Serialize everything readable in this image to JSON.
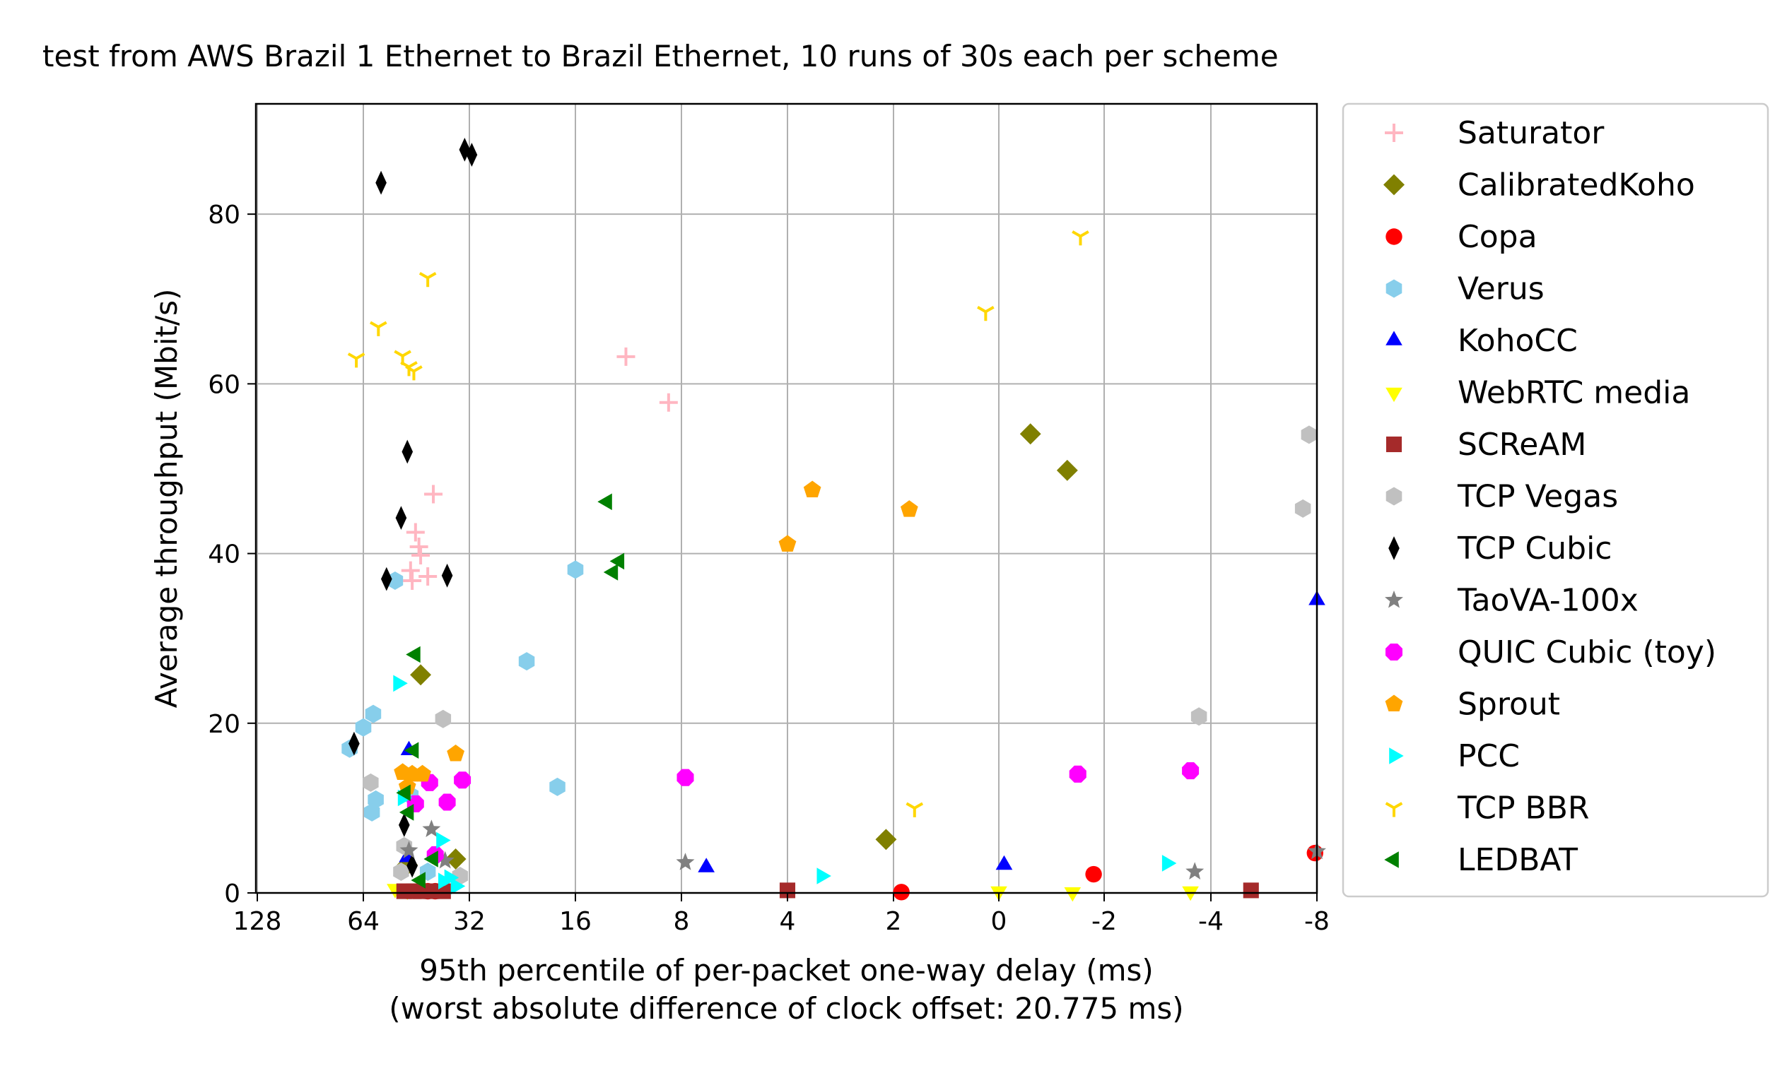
{
  "chart_data": {
    "type": "scatter",
    "title": "test from AWS Brazil 1 Ethernet to Brazil Ethernet, 10 runs of 30s each per scheme",
    "xlabel": "95th percentile of per-packet one-way delay (ms)",
    "xlabel_sub": "(worst absolute difference of clock offset: 20.775 ms)",
    "ylabel": "Average throughput (Mbit/s)",
    "x_scale": "symlog (inverted)",
    "x_ticks": [
      {
        "value": 128,
        "label": "128"
      },
      {
        "value": 64,
        "label": "64"
      },
      {
        "value": 32,
        "label": "32"
      },
      {
        "value": 16,
        "label": "16"
      },
      {
        "value": 8,
        "label": "8"
      },
      {
        "value": 4,
        "label": "4"
      },
      {
        "value": 2,
        "label": "2"
      },
      {
        "value": 0,
        "label": "0"
      },
      {
        "value": -2,
        "label": "-2"
      },
      {
        "value": -4,
        "label": "-4"
      },
      {
        "value": -8,
        "label": "-8"
      }
    ],
    "y_ticks": [
      {
        "value": 0,
        "label": "0"
      },
      {
        "value": 20,
        "label": "20"
      },
      {
        "value": 40,
        "label": "40"
      },
      {
        "value": 60,
        "label": "60"
      },
      {
        "value": 80,
        "label": "80"
      }
    ],
    "ylim": [
      0,
      93
    ],
    "grid": true,
    "legend_position": "right, outside plot",
    "series": [
      {
        "name": "Saturator",
        "marker": "plus",
        "color": "#ffb6c1",
        "points": [
          [
            11.5,
            63.2
          ],
          [
            8.7,
            57.8
          ],
          [
            40.5,
            47.0
          ],
          [
            45.5,
            42.5
          ],
          [
            44.0,
            39.8
          ],
          [
            47.0,
            38.0
          ],
          [
            42.0,
            37.3
          ],
          [
            44.5,
            40.8
          ],
          [
            46.5,
            36.8
          ]
        ]
      },
      {
        "name": "CalibratedKoho",
        "marker": "diamond",
        "color": "#808000",
        "points": [
          [
            -0.6,
            54.1
          ],
          [
            -1.3,
            49.8
          ],
          [
            2.1,
            6.3
          ],
          [
            44.0,
            25.7
          ],
          [
            35.0,
            4.0
          ],
          [
            48.0,
            3.3
          ]
        ]
      },
      {
        "name": "Copa",
        "marker": "circle",
        "color": "#ff0000",
        "points": [
          [
            -1.8,
            2.2
          ],
          [
            1.85,
            0.1
          ],
          [
            -7.9,
            4.7
          ],
          [
            44.0,
            0.3
          ],
          [
            42.0,
            0.2
          ],
          [
            40.0,
            0.2
          ]
        ]
      },
      {
        "name": "Verus",
        "marker": "hexagon",
        "color": "#87ceeb",
        "points": [
          [
            16.0,
            38.1
          ],
          [
            22.0,
            27.3
          ],
          [
            18.0,
            12.5
          ],
          [
            60.0,
            21.1
          ],
          [
            64.0,
            19.5
          ],
          [
            70.0,
            17.0
          ],
          [
            59.0,
            11.0
          ],
          [
            60.5,
            9.5
          ],
          [
            52.0,
            36.8
          ],
          [
            47.0,
            11.5
          ],
          [
            42.0,
            2.5
          ]
        ]
      },
      {
        "name": "KohoCC",
        "marker": "triangle-up",
        "color": "#0000ff",
        "points": [
          [
            6.8,
            3.0
          ],
          [
            -0.1,
            3.3
          ],
          [
            -8.0,
            34.5
          ],
          [
            47.5,
            16.8
          ],
          [
            48.0,
            4.2
          ]
        ]
      },
      {
        "name": "WebRTC media",
        "marker": "triangle-down",
        "color": "#ffff00",
        "points": [
          [
            0.0,
            0.2
          ],
          [
            -1.4,
            0.1
          ],
          [
            -3.5,
            0.2
          ],
          [
            52.0,
            0.5
          ],
          [
            48.0,
            0.3
          ]
        ]
      },
      {
        "name": "SCReAM",
        "marker": "square",
        "color": "#a52a2a",
        "points": [
          [
            4.0,
            0.3
          ],
          [
            -5.2,
            0.3
          ],
          [
            49.0,
            0.2
          ],
          [
            46.0,
            0.2
          ],
          [
            44.0,
            0.2
          ],
          [
            41.0,
            0.2
          ],
          [
            38.0,
            0.2
          ]
        ]
      },
      {
        "name": "TCP Vegas",
        "marker": "hexagon",
        "color": "#c0c0c0",
        "points": [
          [
            -7.6,
            54.0
          ],
          [
            -7.3,
            45.3
          ],
          [
            -3.7,
            20.8
          ],
          [
            38.0,
            20.5
          ],
          [
            61.0,
            13.0
          ],
          [
            49.0,
            5.5
          ],
          [
            34.0,
            2.0
          ],
          [
            50.0,
            2.5
          ]
        ]
      },
      {
        "name": "TCP Cubic",
        "marker": "thin-diamond",
        "color": "#000000",
        "points": [
          [
            33.0,
            87.6
          ],
          [
            31.5,
            87.0
          ],
          [
            57.0,
            83.7
          ],
          [
            48.0,
            52.0
          ],
          [
            50.0,
            44.2
          ],
          [
            37.0,
            37.4
          ],
          [
            55.0,
            37.0
          ],
          [
            68.0,
            17.6
          ],
          [
            49.0,
            8.0
          ],
          [
            46.5,
            3.2
          ]
        ]
      },
      {
        "name": "TaoVA-100x",
        "marker": "star",
        "color": "#808080",
        "points": [
          [
            7.8,
            3.6
          ],
          [
            -3.6,
            2.5
          ],
          [
            -8.0,
            4.9
          ],
          [
            41.0,
            7.5
          ],
          [
            47.5,
            5.0
          ],
          [
            37.5,
            3.8
          ]
        ]
      },
      {
        "name": "QUIC Cubic (toy)",
        "marker": "octagon",
        "color": "#ff00ff",
        "points": [
          [
            7.8,
            13.6
          ],
          [
            -1.5,
            14.0
          ],
          [
            -3.5,
            14.4
          ],
          [
            33.5,
            13.3
          ],
          [
            37.0,
            10.7
          ],
          [
            41.5,
            13.0
          ],
          [
            45.5,
            10.5
          ],
          [
            40.0,
            4.5
          ]
        ]
      },
      {
        "name": "Sprout",
        "marker": "pentagon",
        "color": "#ffa500",
        "points": [
          [
            3.4,
            47.5
          ],
          [
            4.0,
            41.1
          ],
          [
            1.7,
            45.2
          ],
          [
            35.0,
            16.4
          ],
          [
            49.5,
            14.2
          ],
          [
            46.5,
            14.0
          ],
          [
            43.5,
            14.0
          ],
          [
            48.0,
            12.5
          ]
        ]
      },
      {
        "name": "PCC",
        "marker": "triangle-right",
        "color": "#00ffff",
        "points": [
          [
            3.2,
            2.0
          ],
          [
            -3.0,
            3.5
          ],
          [
            51.0,
            24.7
          ],
          [
            49.5,
            11.2
          ],
          [
            38.5,
            6.2
          ],
          [
            36.5,
            1.8
          ],
          [
            38.0,
            1.4
          ],
          [
            35.0,
            0.8
          ]
        ]
      },
      {
        "name": "TCP BBR",
        "marker": "tri-down",
        "color": "#ffd700",
        "points": [
          [
            -1.55,
            77.4
          ],
          [
            0.25,
            68.5
          ],
          [
            1.6,
            10.0
          ],
          [
            42.0,
            72.5
          ],
          [
            58.0,
            66.7
          ],
          [
            67.0,
            63.0
          ],
          [
            49.5,
            63.3
          ],
          [
            47.5,
            62.0
          ],
          [
            46.0,
            61.5
          ]
        ]
      },
      {
        "name": "LEDBAT",
        "marker": "triangle-left",
        "color": "#008000",
        "points": [
          [
            13.0,
            46.1
          ],
          [
            12.0,
            39.1
          ],
          [
            12.5,
            37.8
          ],
          [
            45.5,
            28.1
          ],
          [
            46.0,
            16.8
          ],
          [
            48.5,
            11.8
          ],
          [
            47.5,
            9.5
          ],
          [
            40.5,
            4.0
          ],
          [
            44.0,
            1.5
          ]
        ]
      }
    ]
  }
}
